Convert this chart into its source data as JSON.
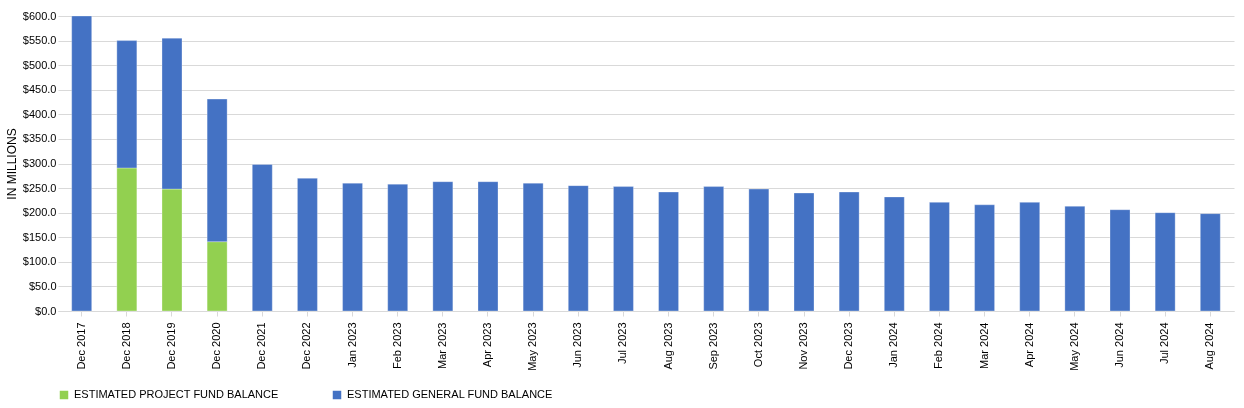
{
  "chart_data": {
    "type": "bar",
    "ylabel": "IN MILLIONS",
    "stacked": true,
    "grid": "y",
    "legend": "bottom",
    "categories": [
      "Dec 2017",
      "Dec 2018",
      "Dec 2019",
      "Dec 2020",
      "Dec 2021",
      "Dec 2022",
      "Jan 2023",
      "Feb 2023",
      "Mar 2023",
      "Apr 2023",
      "May 2023",
      "Jun 2023",
      "Jul 2023",
      "Aug 2023",
      "Sep 2023",
      "Oct 2023",
      "Nov 2023",
      "Dec 2023",
      "Jan 2024",
      "Feb 2024",
      "Mar 2024",
      "Apr 2024",
      "May 2024",
      "Jun 2024",
      "Jul 2024",
      "Aug 2024"
    ],
    "series": [
      {
        "name": "ESTIMATED PROJECT FUND BALANCE",
        "color": "#92d050",
        "values": [
          null,
          291,
          248,
          141,
          null,
          null,
          null,
          null,
          null,
          null,
          null,
          null,
          null,
          null,
          null,
          null,
          null,
          null,
          null,
          null,
          null,
          null,
          null,
          null,
          null,
          null
        ]
      },
      {
        "name": "ESTIMATED GENERAL FUND BALANCE",
        "color": "#4472c4",
        "values": [
          600,
          259,
          307,
          290,
          298,
          270,
          260,
          258,
          263,
          263,
          260,
          255,
          253,
          242,
          253,
          248,
          240,
          242,
          232,
          221,
          216,
          221,
          213,
          206,
          200,
          198
        ]
      }
    ],
    "ylim": [
      0,
      600
    ],
    "yticks": [
      {
        "value": 0,
        "label": "$0.0"
      },
      {
        "value": 50,
        "label": "$50.0"
      },
      {
        "value": 100,
        "label": "$100.0"
      },
      {
        "value": 150,
        "label": "$150.0"
      },
      {
        "value": 200,
        "label": "$200.0"
      },
      {
        "value": 250,
        "label": "$250.0"
      },
      {
        "value": 300,
        "label": "$300.0"
      },
      {
        "value": 350,
        "label": "$350.0"
      },
      {
        "value": 400,
        "label": "$400.0"
      },
      {
        "value": 450,
        "label": "$450.0"
      },
      {
        "value": 500,
        "label": "$500.0"
      },
      {
        "value": 550,
        "label": "$550.0"
      },
      {
        "value": 600,
        "label": "$600.0"
      }
    ]
  }
}
